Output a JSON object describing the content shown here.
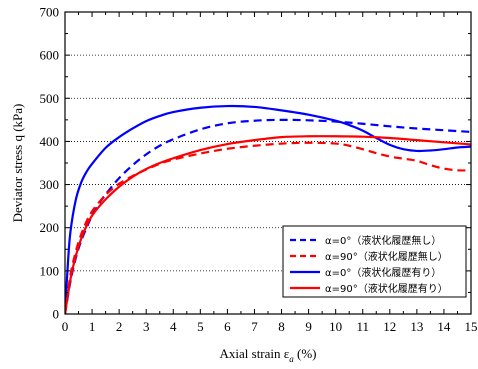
{
  "chart_data": {
    "type": "line",
    "xlabel": "Axial strain ε",
    "xlabel_sub": "a",
    "xlabel_unit": " (%)",
    "ylabel": "Deviator stress q (kPa)",
    "xlim": [
      0,
      15
    ],
    "ylim": [
      0,
      700
    ],
    "xticks": [
      0,
      1,
      2,
      3,
      4,
      5,
      6,
      7,
      8,
      9,
      10,
      11,
      12,
      13,
      14,
      15
    ],
    "yticks": [
      0,
      100,
      200,
      300,
      400,
      500,
      600,
      700
    ],
    "grid": "horizontal-dotted",
    "legend_position": "bottom-right",
    "series": [
      {
        "name": "α=0°（液状化履歴無し）",
        "color": "#0000ff",
        "dash": "dashed",
        "x": [
          0,
          0.2,
          0.4,
          0.6,
          0.8,
          1,
          1.3,
          1.6,
          2,
          2.5,
          3,
          3.5,
          4,
          5,
          6,
          7,
          8,
          9,
          10,
          11,
          12,
          13,
          14,
          15
        ],
        "y": [
          0,
          75,
          130,
          170,
          200,
          228,
          260,
          285,
          315,
          345,
          370,
          390,
          405,
          428,
          442,
          448,
          450,
          449,
          446,
          441,
          435,
          430,
          426,
          422
        ]
      },
      {
        "name": "α=90°（液状化履歴無し）",
        "color": "#ff0000",
        "dash": "dashed",
        "x": [
          0,
          0.2,
          0.4,
          0.6,
          0.8,
          1,
          1.3,
          1.6,
          2,
          2.5,
          3,
          3.5,
          4,
          5,
          6,
          7,
          8,
          9,
          10,
          10.5,
          11,
          11.5,
          12,
          12.5,
          13,
          13.5,
          14,
          14.5,
          15
        ],
        "y": [
          0,
          90,
          145,
          185,
          215,
          238,
          262,
          282,
          302,
          320,
          335,
          348,
          358,
          372,
          383,
          390,
          395,
          397,
          395,
          390,
          382,
          373,
          365,
          360,
          355,
          345,
          337,
          333,
          333
        ]
      },
      {
        "name": "α=0°（液状化履歴有り）",
        "color": "#0000ff",
        "dash": "solid",
        "x": [
          0,
          0.1,
          0.2,
          0.4,
          0.6,
          0.8,
          1,
          1.5,
          2,
          2.5,
          3,
          3.5,
          4,
          5,
          6,
          7,
          8,
          9,
          10,
          10.5,
          11,
          11.5,
          12,
          12.5,
          13,
          13.5,
          14,
          14.5,
          15
        ],
        "y": [
          0,
          110,
          190,
          265,
          305,
          330,
          348,
          385,
          410,
          430,
          447,
          459,
          468,
          478,
          482,
          480,
          472,
          462,
          448,
          438,
          425,
          408,
          392,
          382,
          378,
          379,
          382,
          386,
          388
        ]
      },
      {
        "name": "α=90°（液状化履歴有り）",
        "color": "#ff0000",
        "dash": "solid",
        "x": [
          0,
          0.2,
          0.4,
          0.6,
          0.8,
          1,
          1.3,
          1.6,
          2,
          2.5,
          3,
          3.5,
          4,
          5,
          6,
          7,
          8,
          9,
          10,
          11,
          12,
          13,
          14,
          15
        ],
        "y": [
          0,
          80,
          135,
          175,
          205,
          228,
          252,
          272,
          295,
          318,
          336,
          350,
          361,
          380,
          394,
          403,
          410,
          412,
          412,
          411,
          408,
          403,
          398,
          393
        ]
      }
    ]
  }
}
